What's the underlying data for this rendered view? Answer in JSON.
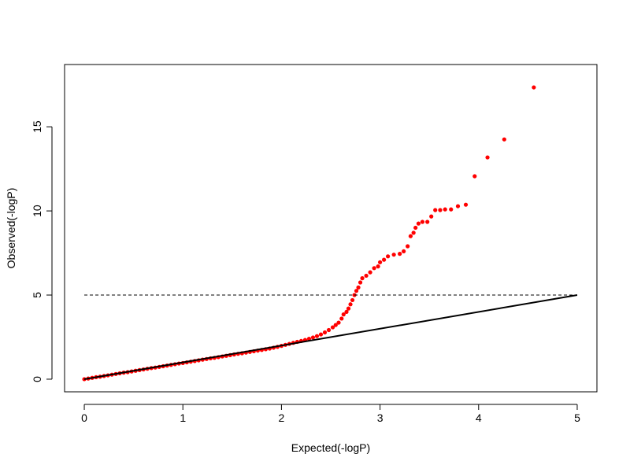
{
  "chart_data": {
    "type": "scatter",
    "title": "",
    "xlabel": "Expected(-logP)",
    "ylabel": "Observed(-logP)",
    "xlim": [
      -0.2,
      5.2
    ],
    "ylim": [
      -0.75,
      18.7
    ],
    "xticks": [
      "0",
      "1",
      "2",
      "3",
      "4",
      "5"
    ],
    "yticks": [
      "0",
      "5",
      "10",
      "15"
    ],
    "grid": false,
    "point_color": "#ff0000",
    "reference_line": {
      "from": [
        0,
        0
      ],
      "to": [
        5,
        5
      ],
      "color": "#000000",
      "style": "solid"
    },
    "threshold_line": {
      "y": 5,
      "x_from": 0,
      "x_to": 5,
      "color": "#000000",
      "style": "dashed"
    },
    "points": [
      [
        0,
        0
      ],
      [
        0.04,
        0.04
      ],
      [
        0.08,
        0.08
      ],
      [
        0.12,
        0.12
      ],
      [
        0.16,
        0.15
      ],
      [
        0.2,
        0.19
      ],
      [
        0.24,
        0.23
      ],
      [
        0.28,
        0.27
      ],
      [
        0.32,
        0.31
      ],
      [
        0.36,
        0.35
      ],
      [
        0.4,
        0.39
      ],
      [
        0.44,
        0.42
      ],
      [
        0.48,
        0.46
      ],
      [
        0.52,
        0.5
      ],
      [
        0.56,
        0.54
      ],
      [
        0.6,
        0.58
      ],
      [
        0.64,
        0.62
      ],
      [
        0.68,
        0.66
      ],
      [
        0.72,
        0.69
      ],
      [
        0.76,
        0.73
      ],
      [
        0.8,
        0.77
      ],
      [
        0.84,
        0.81
      ],
      [
        0.88,
        0.85
      ],
      [
        0.92,
        0.89
      ],
      [
        0.96,
        0.93
      ],
      [
        1,
        0.96
      ],
      [
        1.04,
        1
      ],
      [
        1.08,
        1.04
      ],
      [
        1.12,
        1.08
      ],
      [
        1.16,
        1.12
      ],
      [
        1.2,
        1.16
      ],
      [
        1.24,
        1.2
      ],
      [
        1.28,
        1.24
      ],
      [
        1.32,
        1.27
      ],
      [
        1.36,
        1.31
      ],
      [
        1.4,
        1.35
      ],
      [
        1.44,
        1.39
      ],
      [
        1.48,
        1.43
      ],
      [
        1.52,
        1.47
      ],
      [
        1.56,
        1.51
      ],
      [
        1.6,
        1.54
      ],
      [
        1.64,
        1.58
      ],
      [
        1.68,
        1.62
      ],
      [
        1.72,
        1.66
      ],
      [
        1.76,
        1.7
      ],
      [
        1.8,
        1.74
      ],
      [
        1.84,
        1.78
      ],
      [
        1.88,
        1.82
      ],
      [
        1.92,
        1.87
      ],
      [
        1.96,
        1.92
      ],
      [
        2.0,
        1.98
      ],
      [
        2.04,
        2.04
      ],
      [
        2.08,
        2.1
      ],
      [
        2.12,
        2.16
      ],
      [
        2.16,
        2.22
      ],
      [
        2.2,
        2.27
      ],
      [
        2.24,
        2.33
      ],
      [
        2.28,
        2.4
      ],
      [
        2.32,
        2.48
      ],
      [
        2.36,
        2.56
      ],
      [
        2.4,
        2.66
      ],
      [
        2.44,
        2.78
      ],
      [
        2.48,
        2.92
      ],
      [
        2.52,
        3.08
      ],
      [
        2.55,
        3.22
      ],
      [
        2.58,
        3.36
      ],
      [
        2.61,
        3.6
      ],
      [
        2.63,
        3.85
      ],
      [
        2.66,
        4.0
      ],
      [
        2.68,
        4.2
      ],
      [
        2.7,
        4.45
      ],
      [
        2.72,
        4.7
      ],
      [
        2.74,
        5.0
      ],
      [
        2.76,
        5.25
      ],
      [
        2.78,
        5.45
      ],
      [
        2.8,
        5.75
      ],
      [
        2.82,
        6.0
      ],
      [
        2.86,
        6.15
      ],
      [
        2.9,
        6.35
      ],
      [
        2.94,
        6.6
      ],
      [
        2.98,
        6.7
      ],
      [
        3.0,
        6.95
      ],
      [
        3.04,
        7.1
      ],
      [
        3.08,
        7.3
      ],
      [
        3.14,
        7.4
      ],
      [
        3.2,
        7.45
      ],
      [
        3.24,
        7.6
      ],
      [
        3.28,
        7.9
      ],
      [
        3.31,
        8.5
      ],
      [
        3.34,
        8.7
      ],
      [
        3.36,
        9.0
      ],
      [
        3.39,
        9.25
      ],
      [
        3.43,
        9.35
      ],
      [
        3.48,
        9.35
      ],
      [
        3.52,
        9.67
      ],
      [
        3.56,
        10.05
      ],
      [
        3.61,
        10.05
      ],
      [
        3.66,
        10.09
      ],
      [
        3.72,
        10.09
      ],
      [
        3.79,
        10.28
      ],
      [
        3.87,
        10.37
      ],
      [
        3.96,
        12.06
      ],
      [
        4.09,
        13.18
      ],
      [
        4.26,
        14.25
      ],
      [
        4.56,
        17.34
      ]
    ]
  }
}
